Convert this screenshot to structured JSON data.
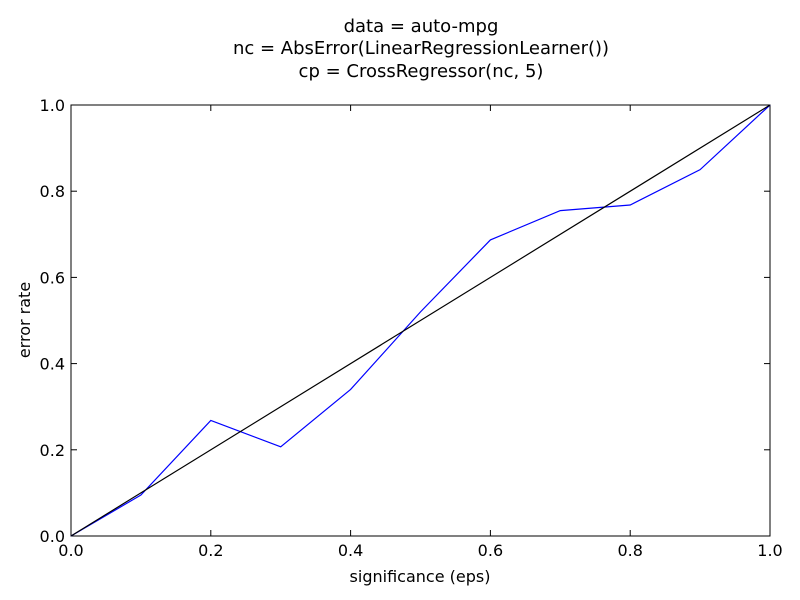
{
  "chart_data": {
    "type": "line",
    "title_lines": [
      "data = auto-mpg",
      "nc = AbsError(LinearRegressionLearner())",
      "cp = CrossRegressor(nc, 5)"
    ],
    "xlabel": "significance (eps)",
    "ylabel": "error rate",
    "xlim": [
      0.0,
      1.0
    ],
    "ylim": [
      0.0,
      1.0
    ],
    "xticks": [
      0.0,
      0.2,
      0.4,
      0.6,
      0.8,
      1.0
    ],
    "yticks": [
      0.0,
      0.2,
      0.4,
      0.6,
      0.8,
      1.0
    ],
    "xtick_labels": [
      "0.0",
      "0.2",
      "0.4",
      "0.6",
      "0.8",
      "1.0"
    ],
    "ytick_labels": [
      "0.0",
      "0.2",
      "0.4",
      "0.6",
      "0.8",
      "1.0"
    ],
    "grid": false,
    "series": [
      {
        "color": "#0000ff",
        "x": [
          0.0,
          0.1,
          0.2,
          0.3,
          0.4,
          0.5,
          0.6,
          0.7,
          0.8,
          0.9,
          1.0
        ],
        "y": [
          0.0,
          0.095,
          0.268,
          0.207,
          0.34,
          0.52,
          0.687,
          0.755,
          0.768,
          0.85,
          1.0
        ]
      },
      {
        "color": "#000000",
        "x": [
          0.0,
          1.0
        ],
        "y": [
          0.0,
          1.0
        ]
      }
    ]
  }
}
